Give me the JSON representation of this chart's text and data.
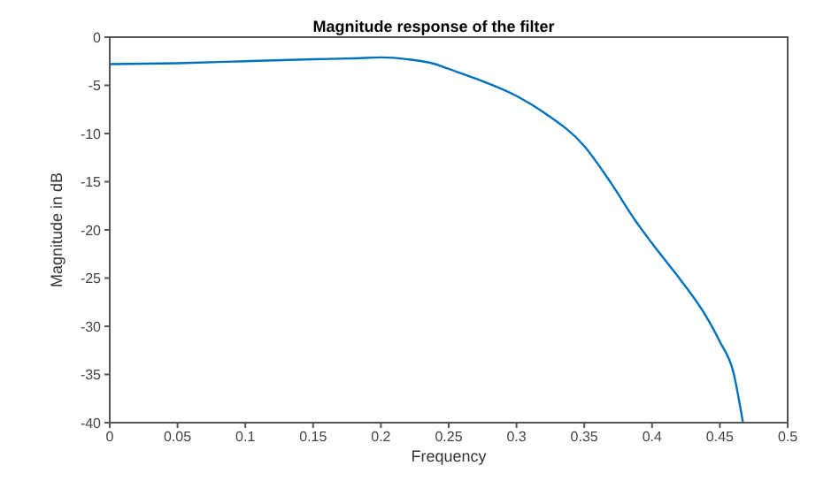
{
  "chart_data": {
    "type": "line",
    "title": "Magnitude response of the filter",
    "xlabel": "Frequency",
    "ylabel": "Magnitude in dB",
    "x": [
      0,
      0.05,
      0.1,
      0.15,
      0.18,
      0.2,
      0.22,
      0.24,
      0.25,
      0.27,
      0.3,
      0.32,
      0.35,
      0.37,
      0.387,
      0.4,
      0.42,
      0.44,
      0.45,
      0.46,
      0.467
    ],
    "series": [
      {
        "color": "#0072bd",
        "values": [
          -2.8,
          -2.7,
          -2.5,
          -2.3,
          -2.2,
          -2.1,
          -2.3,
          -2.8,
          -3.3,
          -4.3,
          -6.1,
          -7.8,
          -11.3,
          -15.2,
          -18.9,
          -21.4,
          -25,
          -29,
          -31.6,
          -34.8,
          -40
        ]
      }
    ],
    "xlim": [
      0,
      0.5
    ],
    "xticks": [
      0,
      0.05,
      0.1,
      0.15,
      0.2,
      0.25,
      0.3,
      0.35,
      0.4,
      0.45,
      0.5
    ],
    "ylim": [
      -40,
      0
    ],
    "yticks": [
      -40,
      -35,
      -30,
      -25,
      -20,
      -15,
      -10,
      -5,
      0
    ],
    "grid": false,
    "legend": false,
    "marker": "none",
    "line_style": "solid"
  }
}
